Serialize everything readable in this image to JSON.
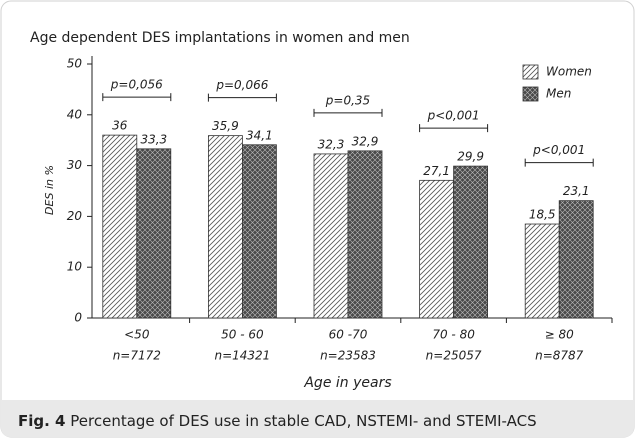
{
  "chart_data": {
    "type": "bar",
    "title": "Age dependent DES implantations in women and men",
    "categories": [
      "<50",
      "50 - 60",
      "60 -70",
      "70 - 80",
      "≥ 80"
    ],
    "sample_sizes": [
      "n=7172",
      "n=14321",
      "n=23583",
      "n=25057",
      "n=8787"
    ],
    "p_values": [
      "p=0,056",
      "p=0,066",
      "p=0,35",
      "p<0,001",
      "p<0,001"
    ],
    "series": [
      {
        "name": "Women",
        "color": "#ffffff",
        "values": [
          36,
          35.9,
          32.3,
          27.1,
          18.5
        ],
        "value_labels": [
          "36",
          "35,9",
          "32,3",
          "27,1",
          "18,5"
        ]
      },
      {
        "name": "Men",
        "color": "#4a4a4a",
        "values": [
          33.3,
          34.1,
          32.9,
          29.9,
          23.1
        ],
        "value_labels": [
          "33,3",
          "34,1",
          "32,9",
          "29,9",
          "23,1"
        ]
      }
    ],
    "ylabel": "DES in %",
    "xlabel": "Age in years",
    "ylim": [
      0,
      50
    ],
    "yticks": [
      0,
      10,
      20,
      30,
      40,
      50
    ],
    "legend": "upper right"
  },
  "caption": {
    "label": "Fig. 4",
    "text": "Percentage of DES use in stable CAD, NSTEMI- and STEMI-ACS"
  }
}
